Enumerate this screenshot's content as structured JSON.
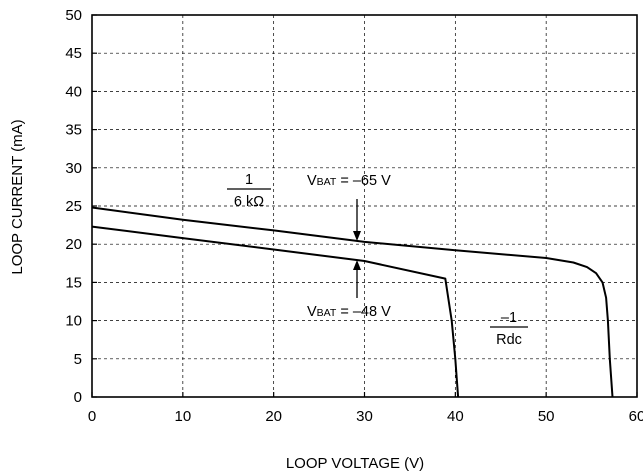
{
  "chart_data": {
    "type": "line",
    "xlabel": "LOOP VOLTAGE (V)",
    "ylabel": "LOOP CURRENT (mA)",
    "xlim": [
      0,
      60
    ],
    "ylim": [
      0,
      50
    ],
    "x_ticks": [
      0,
      10,
      20,
      30,
      40,
      50,
      60
    ],
    "y_ticks": [
      0,
      5,
      10,
      15,
      20,
      25,
      30,
      35,
      40,
      45,
      50
    ],
    "grid": true,
    "series": [
      {
        "points": [
          [
            0,
            24.8
          ],
          [
            10,
            23.2
          ],
          [
            20,
            21.8
          ],
          [
            30,
            20.3
          ],
          [
            40,
            19.2
          ],
          [
            50,
            18.2
          ],
          [
            53,
            17.6
          ],
          [
            54.5,
            17.0
          ],
          [
            55.5,
            16.2
          ],
          [
            56.2,
            15.0
          ],
          [
            56.6,
            13.0
          ],
          [
            56.8,
            10.0
          ],
          [
            57.0,
            5.0
          ],
          [
            57.3,
            0
          ]
        ]
      },
      {
        "points": [
          [
            0,
            22.3
          ],
          [
            10,
            20.8
          ],
          [
            20,
            19.3
          ],
          [
            30,
            17.8
          ],
          [
            38.9,
            15.5
          ],
          [
            39.6,
            10.0
          ],
          [
            40.0,
            5.0
          ],
          [
            40.3,
            0
          ]
        ]
      }
    ],
    "annotations": {
      "slope_label": {
        "numerator": "1",
        "denominator": "6 kΩ"
      },
      "vbat_65": {
        "v": "V",
        "sub": "BAT",
        "rest": " = –65 V"
      },
      "vbat_48": {
        "v": "V",
        "sub": "BAT",
        "rest": " = –48 V"
      },
      "rdc_label": {
        "numerator": "–1",
        "denominator": "Rdc"
      }
    }
  }
}
